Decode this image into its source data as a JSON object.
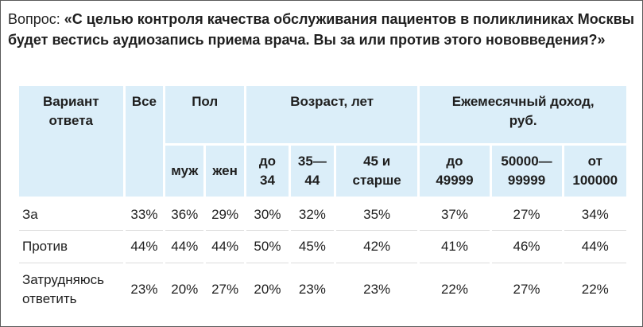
{
  "question": {
    "label": "Вопрос: ",
    "text": "«С целью контроля качества обслуживания пациентов в поликлиниках Москвы будет вестись аудиозапись приема врача. Вы за или против этого нововведения?»"
  },
  "table": {
    "headers": {
      "answer": "Вариант ответа",
      "all": "Все",
      "gender": "Пол",
      "age": "Возраст, лет",
      "income": "Ежемесячный доход, руб."
    },
    "subheaders": {
      "male": "муж",
      "female": "жен",
      "age_1": "до 34",
      "age_2": "35—44",
      "age_3": "45 и старше",
      "income_1": "до 49999",
      "income_2": "50000—99999",
      "income_3": "от 100000"
    },
    "rows": [
      {
        "answer": "За",
        "values": [
          "33%",
          "36%",
          "29%",
          "30%",
          "32%",
          "35%",
          "37%",
          "27%",
          "34%"
        ]
      },
      {
        "answer": "Против",
        "values": [
          "44%",
          "44%",
          "44%",
          "50%",
          "45%",
          "42%",
          "41%",
          "46%",
          "44%"
        ]
      },
      {
        "answer": "Затрудняюсь ответить",
        "values": [
          "23%",
          "20%",
          "27%",
          "20%",
          "23%",
          "23%",
          "22%",
          "27%",
          "22%"
        ]
      }
    ]
  }
}
